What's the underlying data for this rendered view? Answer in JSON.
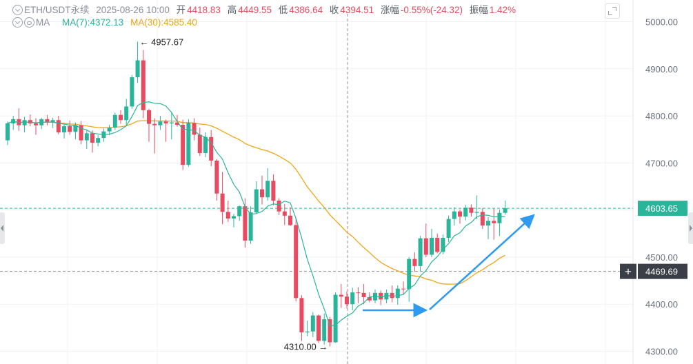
{
  "header": {
    "symbol": "ETH/USDT永续",
    "datetime": "2025-08-26 10:00",
    "open_label": "开",
    "open": "4418.83",
    "high_label": "高",
    "high": "4449.55",
    "low_label": "低",
    "low": "4386.64",
    "close_label": "收",
    "close": "4394.51",
    "change_label": "涨幅",
    "change": "-0.55%(-24.32)",
    "amplitude_label": "振幅",
    "amplitude": "1.42%",
    "ma_label": "MA",
    "ma7": "MA(7):4372.13",
    "ma30": "MA(30):4585.40"
  },
  "colors": {
    "up": "#2ab59a",
    "down": "#e84a5f",
    "ma7": "#2ab59a",
    "ma30": "#f0a515",
    "arrow": "#2f9bf0",
    "grid": "#f0f1f3",
    "axis_text": "#6b7280",
    "price_line": "#2ab59a",
    "crosshair": "#8a8f99"
  },
  "chart_data": {
    "type": "candlestick",
    "ylim": [
      4290,
      5030
    ],
    "yticks": [
      "5000.00",
      "4900.00",
      "4800.00",
      "4700.00",
      "4600.00",
      "4500.00",
      "4400.00",
      "4300.00"
    ],
    "candles": [
      [
        4748,
        4788,
        4738,
        4784
      ],
      [
        4784,
        4800,
        4770,
        4793
      ],
      [
        4793,
        4816,
        4768,
        4780
      ],
      [
        4780,
        4798,
        4765,
        4791
      ],
      [
        4791,
        4803,
        4778,
        4784
      ],
      [
        4784,
        4795,
        4760,
        4780
      ],
      [
        4780,
        4796,
        4772,
        4793
      ],
      [
        4793,
        4802,
        4780,
        4787
      ],
      [
        4787,
        4796,
        4774,
        4791
      ],
      [
        4791,
        4800,
        4761,
        4765
      ],
      [
        4765,
        4781,
        4752,
        4778
      ],
      [
        4778,
        4790,
        4760,
        4766
      ],
      [
        4766,
        4786,
        4750,
        4780
      ],
      [
        4780,
        4789,
        4740,
        4748
      ],
      [
        4748,
        4770,
        4730,
        4763
      ],
      [
        4763,
        4769,
        4722,
        4743
      ],
      [
        4743,
        4759,
        4735,
        4753
      ],
      [
        4753,
        4773,
        4745,
        4767
      ],
      [
        4767,
        4781,
        4759,
        4775
      ],
      [
        4775,
        4807,
        4770,
        4802
      ],
      [
        4802,
        4812,
        4783,
        4791
      ],
      [
        4791,
        4836,
        4780,
        4820
      ],
      [
        4820,
        4887,
        4815,
        4882
      ],
      [
        4882,
        4957.67,
        4870,
        4918
      ],
      [
        4918,
        4940,
        4795,
        4812
      ],
      [
        4812,
        4815,
        4745,
        4783
      ],
      [
        4783,
        4795,
        4720,
        4780
      ],
      [
        4780,
        4800,
        4770,
        4788
      ],
      [
        4788,
        4792,
        4745,
        4784
      ],
      [
        4784,
        4808,
        4750,
        4786
      ],
      [
        4786,
        4802,
        4777,
        4781
      ],
      [
        4781,
        4792,
        4685,
        4696
      ],
      [
        4696,
        4793,
        4692,
        4785
      ],
      [
        4785,
        4795,
        4748,
        4760
      ],
      [
        4760,
        4775,
        4715,
        4721
      ],
      [
        4721,
        4765,
        4712,
        4755
      ],
      [
        4755,
        4770,
        4693,
        4705
      ],
      [
        4705,
        4708,
        4620,
        4635
      ],
      [
        4635,
        4681,
        4570,
        4596
      ],
      [
        4596,
        4620,
        4575,
        4582
      ],
      [
        4582,
        4592,
        4563,
        4587
      ],
      [
        4587,
        4610,
        4577,
        4608
      ],
      [
        4608,
        4625,
        4520,
        4535
      ],
      [
        4535,
        4608,
        4528,
        4595
      ],
      [
        4595,
        4661,
        4592,
        4644
      ],
      [
        4644,
        4673,
        4612,
        4627
      ],
      [
        4627,
        4689,
        4620,
        4662
      ],
      [
        4662,
        4676,
        4610,
        4620
      ],
      [
        4620,
        4625,
        4589,
        4597
      ],
      [
        4597,
        4613,
        4568,
        4588
      ],
      [
        4588,
        4606,
        4566,
        4568
      ],
      [
        4568,
        4582,
        4406,
        4413
      ],
      [
        4413,
        4419,
        4322,
        4340
      ],
      [
        4340,
        4365,
        4332,
        4342
      ],
      [
        4342,
        4383,
        4330,
        4376
      ],
      [
        4376,
        4378,
        4318,
        4322
      ],
      [
        4322,
        4380,
        4314,
        4368
      ],
      [
        4368,
        4373,
        4310.0,
        4319
      ],
      [
        4319,
        4425,
        4318,
        4420
      ],
      [
        4420,
        4443,
        4392,
        4416
      ],
      [
        4416,
        4427,
        4391,
        4400
      ],
      [
        4400,
        4435,
        4387,
        4425
      ],
      [
        4425,
        4436,
        4402,
        4424
      ],
      [
        4424,
        4443,
        4400,
        4415
      ],
      [
        4415,
        4425,
        4404,
        4408
      ],
      [
        4408,
        4431,
        4402,
        4424
      ],
      [
        4424,
        4429,
        4398,
        4410
      ],
      [
        4410,
        4431,
        4402,
        4424
      ],
      [
        4424,
        4440,
        4404,
        4413
      ],
      [
        4413,
        4440,
        4399,
        4433
      ],
      [
        4433,
        4448,
        4420,
        4432
      ],
      [
        4432,
        4500,
        4405,
        4496
      ],
      [
        4496,
        4510,
        4469,
        4481
      ],
      [
        4481,
        4545,
        4470,
        4540
      ],
      [
        4540,
        4571,
        4500,
        4505
      ],
      [
        4505,
        4560,
        4500,
        4541
      ],
      [
        4541,
        4550,
        4508,
        4511
      ],
      [
        4511,
        4548,
        4506,
        4541
      ],
      [
        4541,
        4588,
        4532,
        4581
      ],
      [
        4581,
        4606,
        4567,
        4597
      ],
      [
        4597,
        4601,
        4571,
        4586
      ],
      [
        4586,
        4611,
        4578,
        4605
      ],
      [
        4605,
        4612,
        4586,
        4594
      ],
      [
        4594,
        4631,
        4580,
        4596
      ],
      [
        4596,
        4604,
        4560,
        4567
      ],
      [
        4567,
        4585,
        4538,
        4577
      ],
      [
        4577,
        4603,
        4537,
        4572
      ],
      [
        4572,
        4601,
        4545,
        4594
      ],
      [
        4594,
        4620,
        4590,
        4603.65
      ]
    ],
    "last_price": "4603.65",
    "crosshair_price": "4469.69",
    "annotations": {
      "high": "4957.67",
      "low": "4310.00"
    }
  }
}
